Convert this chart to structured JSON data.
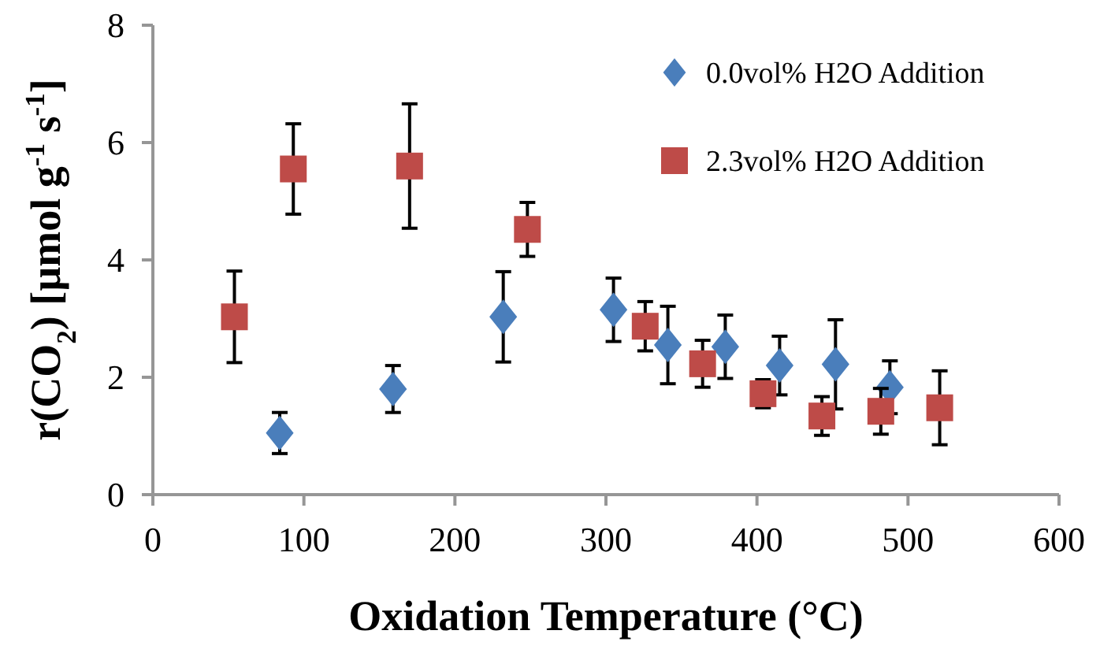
{
  "chart_data": {
    "type": "scatter",
    "xlabel": "Oxidation Temperature (°C)",
    "ylabel": "r(CO$_{2}$) [µmol g$^{-1}$ s$^{-1}$]",
    "xlim": [
      0,
      600
    ],
    "xticks": [
      0,
      100,
      200,
      300,
      400,
      500,
      600
    ],
    "ylim": [
      0,
      8
    ],
    "yticks": [
      0,
      2,
      4,
      6,
      8
    ],
    "grid": false,
    "legend": "top right",
    "series": [
      {
        "name": "0.0vol% H2O Addition",
        "color": "#4a7ebb",
        "marker": "diamond",
        "x": [
          84,
          159,
          232,
          305,
          341,
          379,
          415,
          452,
          488
        ],
        "values": [
          1.05,
          1.8,
          3.03,
          3.15,
          2.55,
          2.52,
          2.2,
          2.22,
          1.83
        ],
        "errors": [
          0.35,
          0.4,
          0.77,
          0.54,
          0.66,
          0.54,
          0.5,
          0.76,
          0.45
        ]
      },
      {
        "name": "2.3vol% H2O Addition",
        "color": "#be4b48",
        "marker": "square",
        "x": [
          54,
          93,
          170,
          248,
          326,
          364,
          404,
          443,
          482,
          521
        ],
        "values": [
          3.03,
          5.55,
          5.6,
          4.52,
          2.87,
          2.23,
          1.72,
          1.34,
          1.42,
          1.48
        ],
        "errors": [
          0.78,
          0.77,
          1.06,
          0.46,
          0.42,
          0.4,
          0.24,
          0.33,
          0.39,
          0.63
        ]
      }
    ]
  }
}
